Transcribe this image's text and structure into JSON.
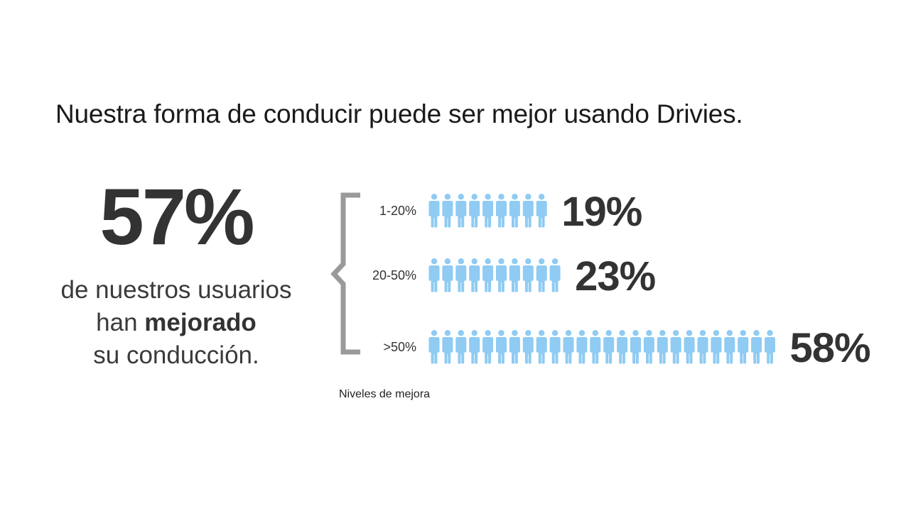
{
  "headline": "Nuestra forma de conducir puede ser mejor usando Drivies.",
  "big_stat": {
    "value": "57%",
    "line1": "de nuestros usuarios",
    "line2_prefix": "han ",
    "line2_bold": "mejorado",
    "line3": "su conducción."
  },
  "chart_data": {
    "type": "bar",
    "categories": [
      "1-20%",
      "20-50%",
      ">50%"
    ],
    "values": [
      19,
      23,
      58
    ],
    "value_labels": [
      "19%",
      "23%",
      "58%"
    ],
    "icon_counts": [
      9,
      10,
      26
    ],
    "xlabel": "Niveles de mejora",
    "ylabel": "",
    "grid": false,
    "icon": "person-icon"
  },
  "colors": {
    "icon": "#8fcbf2",
    "bracket": "#9a9a9a",
    "text_dark": "#333333"
  }
}
